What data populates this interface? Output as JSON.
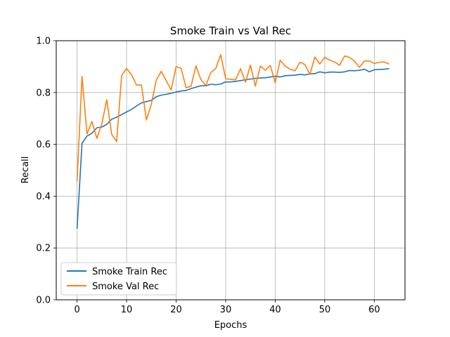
{
  "chart_data": {
    "type": "line",
    "title": "Smoke Train vs Val Rec",
    "xlabel": "Epochs",
    "ylabel": "Recall",
    "xlim": [
      -4.2,
      66.2
    ],
    "ylim": [
      0.0,
      1.0
    ],
    "xticks": [
      0,
      10,
      20,
      30,
      40,
      50,
      60
    ],
    "xtick_labels": [
      "0",
      "10",
      "20",
      "30",
      "40",
      "50",
      "60"
    ],
    "yticks": [
      0.0,
      0.2,
      0.4,
      0.6,
      0.8,
      1.0
    ],
    "ytick_labels": [
      "0.0",
      "0.2",
      "0.4",
      "0.6",
      "0.8",
      "1.0"
    ],
    "grid": true,
    "legend_position": "lower-left",
    "x": [
      0,
      1,
      2,
      3,
      4,
      5,
      6,
      7,
      8,
      9,
      10,
      11,
      12,
      13,
      14,
      15,
      16,
      17,
      18,
      19,
      20,
      21,
      22,
      23,
      24,
      25,
      26,
      27,
      28,
      29,
      30,
      31,
      32,
      33,
      34,
      35,
      36,
      37,
      38,
      39,
      40,
      41,
      42,
      43,
      44,
      45,
      46,
      47,
      48,
      49,
      50,
      51,
      52,
      53,
      54,
      55,
      56,
      57,
      58,
      59,
      60,
      61,
      62,
      63
    ],
    "series": [
      {
        "name": "Smoke Train Rec",
        "color": "#1f77b4",
        "values": [
          0.274,
          0.604,
          0.632,
          0.643,
          0.664,
          0.667,
          0.677,
          0.697,
          0.705,
          0.715,
          0.725,
          0.735,
          0.748,
          0.76,
          0.765,
          0.77,
          0.784,
          0.79,
          0.793,
          0.797,
          0.802,
          0.806,
          0.808,
          0.815,
          0.821,
          0.826,
          0.826,
          0.832,
          0.83,
          0.833,
          0.841,
          0.841,
          0.843,
          0.846,
          0.849,
          0.852,
          0.855,
          0.856,
          0.857,
          0.86,
          0.863,
          0.86,
          0.865,
          0.866,
          0.867,
          0.87,
          0.868,
          0.872,
          0.873,
          0.88,
          0.876,
          0.879,
          0.879,
          0.878,
          0.88,
          0.885,
          0.884,
          0.886,
          0.89,
          0.88,
          0.888,
          0.889,
          0.89,
          0.892
        ]
      },
      {
        "name": "Smoke Val Rec",
        "color": "#ff7f0e",
        "values": [
          0.457,
          0.862,
          0.64,
          0.688,
          0.623,
          0.679,
          0.772,
          0.638,
          0.611,
          0.866,
          0.893,
          0.868,
          0.829,
          0.829,
          0.694,
          0.755,
          0.849,
          0.882,
          0.846,
          0.81,
          0.9,
          0.894,
          0.819,
          0.824,
          0.903,
          0.85,
          0.827,
          0.877,
          0.893,
          0.946,
          0.853,
          0.851,
          0.849,
          0.892,
          0.84,
          0.906,
          0.825,
          0.902,
          0.886,
          0.905,
          0.838,
          0.925,
          0.902,
          0.89,
          0.884,
          0.917,
          0.908,
          0.87,
          0.937,
          0.91,
          0.936,
          0.925,
          0.918,
          0.905,
          0.941,
          0.936,
          0.921,
          0.897,
          0.922,
          0.922,
          0.912,
          0.917,
          0.918,
          0.91
        ]
      }
    ]
  }
}
